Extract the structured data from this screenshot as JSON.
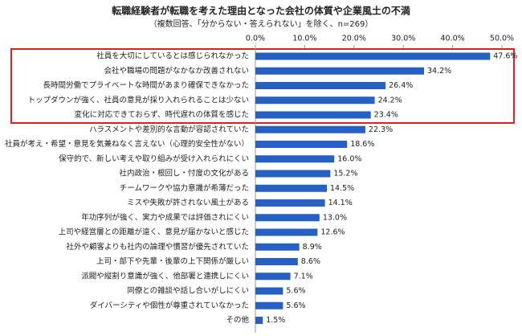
{
  "chart_data": {
    "type": "bar",
    "orientation": "horizontal",
    "title": "転職経験者が転職を考えた理由となった会社の体質や企業風土の不満",
    "subtitle": "（複数回答、「分からない・答えられない」を除く、n=269）",
    "categories": [
      "社員を大切にしているとは感じられなかった",
      "会社や職場の問題がなかなか改善されない",
      "長時間労働でプライベートな時間があまり確保できなかった",
      "トップダウンが強く、社員の意見が採り入れられることは少ない",
      "変化に対応できておらず、時代遅れの体質を感じた",
      "ハラスメントや差別的な言動が容認されていた",
      "社員が考え・希望・意見を気兼ねなく言えない（心理的安全性がない）",
      "保守的で、新しい考えや取り組みが受け入れられにくい",
      "社内政治・根回し・忖度の文化がある",
      "チームワークや協力意識が希薄だった",
      "ミスや失敗が許されない風土がある",
      "年功序列が強く、実力や成果では評価されにくい",
      "上司や経営層との距離が遠く、意見が届かないと感じた",
      "社外や顧客よりも社内の論理や慣習が優先されていた",
      "上司・部下や先輩・後輩の上下関係が厳しい",
      "派閥や縦割り意識が強く、他部署と連携しにくい",
      "同僚との雑談や話し合いがしにくい",
      "ダイバーシティや個性が尊重されていなかった",
      "その他"
    ],
    "values": [
      47.6,
      34.2,
      26.4,
      24.2,
      23.4,
      22.3,
      18.6,
      16.0,
      15.2,
      14.5,
      14.1,
      13.0,
      12.6,
      8.9,
      8.6,
      7.1,
      5.6,
      5.6,
      1.5
    ],
    "value_labels": [
      "47.6%",
      "34.2%",
      "26.4%",
      "24.2%",
      "23.4%",
      "22.3%",
      "18.6%",
      "16.0%",
      "15.2%",
      "14.5%",
      "14.1%",
      "13.0%",
      "12.6%",
      "8.9%",
      "8.6%",
      "7.1%",
      "5.6%",
      "5.6%",
      "1.5%"
    ],
    "color": "#2660c2",
    "xlim": [
      0,
      50
    ],
    "xticks": [
      {
        "value": 0,
        "label": "0.0%"
      },
      {
        "value": 10,
        "label": "10.0%"
      },
      {
        "value": 20,
        "label": "20.0%"
      },
      {
        "value": 30,
        "label": "30.0%"
      },
      {
        "value": 40,
        "label": "40.0%"
      },
      {
        "value": 50,
        "label": "50.0%"
      }
    ]
  }
}
